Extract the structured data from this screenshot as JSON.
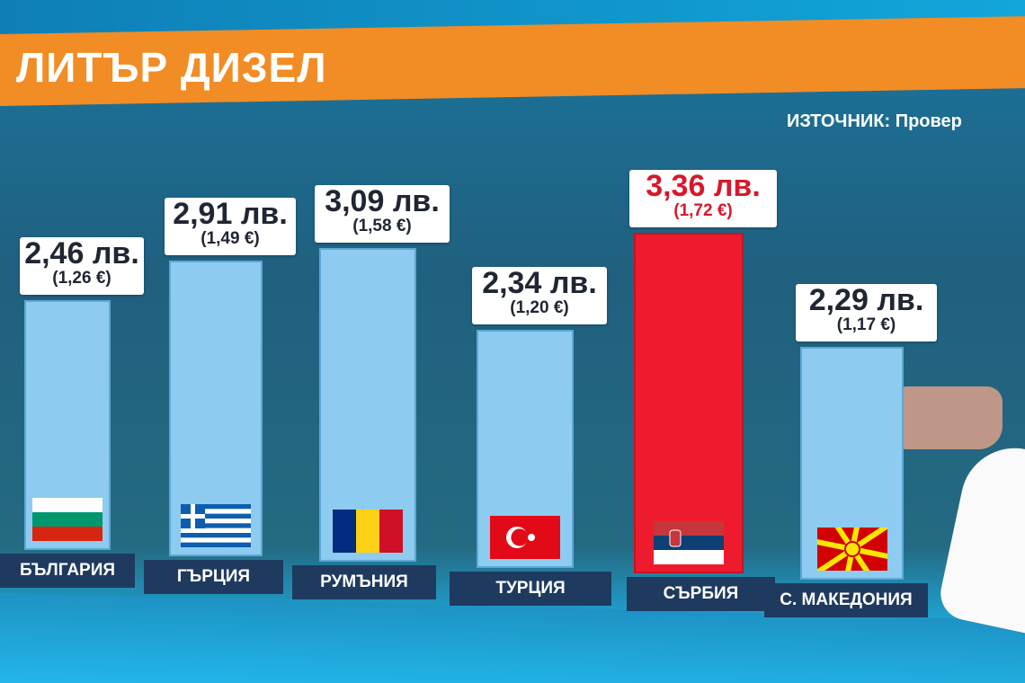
{
  "title": "ЛИТЪР ДИЗЕЛ",
  "source": "ИЗТОЧНИК: Провер",
  "chart_data": {
    "type": "bar",
    "title": "ЛИТЪР ДИЗЕЛ",
    "categories": [
      "БЪЛГАРИЯ",
      "ГЪРЦИЯ",
      "РУМЪНИЯ",
      "ТУРЦИЯ",
      "СЪРБИЯ",
      "С. МАКЕДОНИЯ"
    ],
    "values": [
      2.46,
      2.91,
      3.09,
      2.34,
      3.36,
      2.29
    ],
    "unit": "лв.",
    "labels_bgn": [
      "2,46 лв.",
      "2,91 лв.",
      "3,09 лв.",
      "2,34 лв.",
      "3,36 лв.",
      "2,29 лв."
    ],
    "labels_eur": [
      "(1,26 €)",
      "(1,49 €)",
      "(1,58 €)",
      "(1,20 €)",
      "(1,72 €)",
      "(1,17 €)"
    ],
    "values_eur": [
      1.26,
      1.49,
      1.58,
      1.2,
      1.72,
      1.17
    ],
    "flags": [
      "bulgaria",
      "greece",
      "romania",
      "turkey",
      "serbia",
      "north-macedonia"
    ],
    "highlight_index": 4,
    "colors": {
      "bar": "#8ecbf0",
      "highlight": "#ee1b2e",
      "title_band": "#f28c25",
      "label_bg": "#1f3a5f"
    }
  }
}
